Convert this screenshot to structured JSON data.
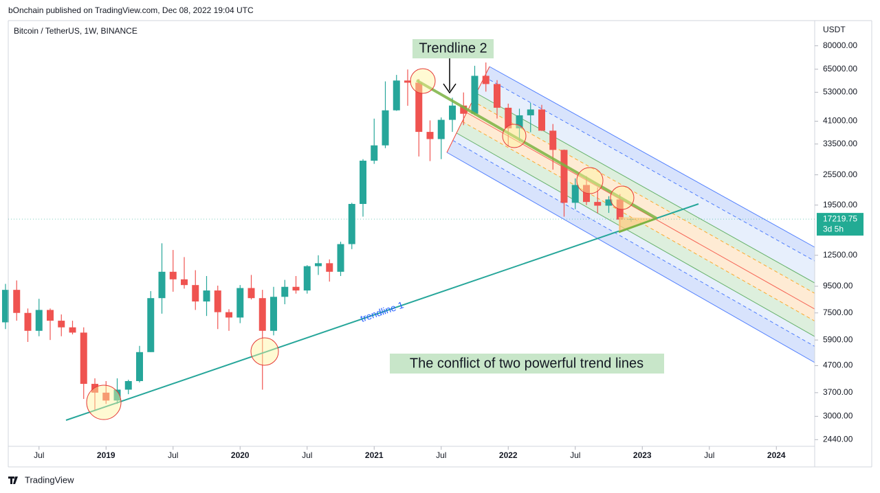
{
  "header": {
    "published": "bOnchain published on TradingView.com, Dec 08, 2022 19:04 UTC",
    "symbol": "Bitcoin / TetherUS, 1W, BINANCE",
    "currency": "USDT",
    "logo": "TradingView"
  },
  "chart_data": {
    "type": "candlestick",
    "log_scale": true,
    "grid": false,
    "up_color": "#26a69a",
    "down_color": "#ef5350",
    "x": [
      "2018-04",
      "2018-05",
      "2018-06",
      "2018-07",
      "2018-08",
      "2018-09",
      "2018-10",
      "2018-11",
      "2018-12",
      "2019-01",
      "2019-02",
      "2019-03",
      "2019-04",
      "2019-05",
      "2019-06",
      "2019-07",
      "2019-08",
      "2019-09",
      "2019-10",
      "2019-11",
      "2019-12",
      "2020-01",
      "2020-02",
      "2020-03",
      "2020-04",
      "2020-05",
      "2020-06",
      "2020-07",
      "2020-08",
      "2020-09",
      "2020-10",
      "2020-11",
      "2020-12",
      "2021-01",
      "2021-02",
      "2021-03",
      "2021-04",
      "2021-05",
      "2021-06",
      "2021-07",
      "2021-08",
      "2021-09",
      "2021-10",
      "2021-11",
      "2021-12",
      "2022-01",
      "2022-02",
      "2022-03",
      "2022-04",
      "2022-05",
      "2022-06",
      "2022-07",
      "2022-08",
      "2022-09",
      "2022-10",
      "2022-11",
      "2022-12"
    ],
    "open": [
      6900,
      9200,
      7500,
      6400,
      7700,
      7000,
      6600,
      6300,
      4000,
      3700,
      3450,
      3800,
      4100,
      5300,
      8550,
      10800,
      10100,
      9600,
      8300,
      9150,
      7550,
      7200,
      9350,
      8550,
      6400,
      8650,
      9450,
      9150,
      11350,
      11650,
      10800,
      13800,
      19700,
      28900,
      33100,
      45150,
      58800,
      57700,
      37300,
      35000,
      41500,
      47100,
      43800,
      61300,
      57000,
      46200,
      38500,
      43200,
      45500,
      37700,
      31800,
      19900,
      23300,
      20050,
      19400,
      20500,
      17150
    ],
    "high": [
      9700,
      10000,
      7800,
      8500,
      7800,
      7400,
      7000,
      6600,
      4200,
      4100,
      4200,
      4150,
      5600,
      9100,
      13900,
      13100,
      12300,
      10950,
      10400,
      9550,
      7750,
      9600,
      10500,
      9200,
      9450,
      10050,
      10400,
      11450,
      12500,
      12050,
      14100,
      19900,
      29300,
      41950,
      58350,
      61800,
      64850,
      59600,
      41300,
      42400,
      50500,
      52900,
      67000,
      69000,
      59000,
      47900,
      45800,
      48200,
      47400,
      40000,
      31900,
      24700,
      25200,
      22800,
      21100,
      21500,
      17400
    ],
    "low": [
      6500,
      7000,
      5800,
      6100,
      5900,
      6100,
      6200,
      3500,
      3150,
      3350,
      3350,
      3650,
      4050,
      5300,
      7450,
      9050,
      9300,
      7700,
      7300,
      6500,
      6400,
      6850,
      8450,
      3800,
      6150,
      8100,
      8900,
      8900,
      10500,
      9900,
      10400,
      13200,
      17600,
      28100,
      32300,
      44950,
      47000,
      30000,
      28800,
      29300,
      37300,
      39600,
      43300,
      53300,
      42000,
      32900,
      34300,
      37200,
      37600,
      26700,
      17600,
      18800,
      19500,
      18150,
      18200,
      15500,
      16800
    ],
    "close": [
      9200,
      7500,
      6400,
      7700,
      7000,
      6600,
      6300,
      4000,
      3700,
      3450,
      3800,
      4100,
      5300,
      8550,
      10800,
      10100,
      9600,
      8300,
      9150,
      7550,
      7200,
      9350,
      8550,
      6400,
      8650,
      9450,
      9150,
      11350,
      11650,
      10800,
      13800,
      19700,
      28900,
      33100,
      45150,
      58800,
      57700,
      37300,
      35000,
      41500,
      47100,
      43800,
      61300,
      57000,
      46200,
      38500,
      43200,
      45500,
      37700,
      31800,
      19900,
      23300,
      20050,
      19400,
      20500,
      17150,
      17220
    ],
    "xlim": [
      "2018-04",
      "2024-04"
    ],
    "xticks": [
      {
        "value": "2018-07",
        "label": "Jul"
      },
      {
        "value": "2019-01",
        "label": "2019"
      },
      {
        "value": "2019-07",
        "label": "Jul"
      },
      {
        "value": "2020-01",
        "label": "2020"
      },
      {
        "value": "2020-07",
        "label": "Jul"
      },
      {
        "value": "2021-01",
        "label": "2021"
      },
      {
        "value": "2021-07",
        "label": "Jul"
      },
      {
        "value": "2022-01",
        "label": "2022"
      },
      {
        "value": "2022-07",
        "label": "Jul"
      },
      {
        "value": "2023-01",
        "label": "2023"
      },
      {
        "value": "2023-07",
        "label": "Jul"
      },
      {
        "value": "2024-01",
        "label": "2024"
      }
    ],
    "ylim": [
      2300,
      100000
    ],
    "yticks": [
      {
        "value": 80000,
        "label": "80000.00"
      },
      {
        "value": 65000,
        "label": "65000.00"
      },
      {
        "value": 53000,
        "label": "53000.00"
      },
      {
        "value": 41000,
        "label": "41000.00"
      },
      {
        "value": 33500,
        "label": "33500.00"
      },
      {
        "value": 25500,
        "label": "25500.00"
      },
      {
        "value": 19500,
        "label": "19500.00"
      },
      {
        "value": 12500,
        "label": "12500.00"
      },
      {
        "value": 9500,
        "label": "9500.00"
      },
      {
        "value": 7500,
        "label": "7500.00"
      },
      {
        "value": 5900,
        "label": "5900.00"
      },
      {
        "value": 4700,
        "label": "4700.00"
      },
      {
        "value": 3700,
        "label": "3700.00"
      },
      {
        "value": 3000,
        "label": "3000.00"
      },
      {
        "value": 2440,
        "label": "2440.00"
      }
    ],
    "last_price": 17219.75,
    "countdown": "3d 5h",
    "last_price_color": "#22ab94",
    "annotations": {
      "trendline_1": "trendline 1",
      "trendline_2": "Trendline 2",
      "note": "The conflict of two powerful trend lines"
    }
  }
}
